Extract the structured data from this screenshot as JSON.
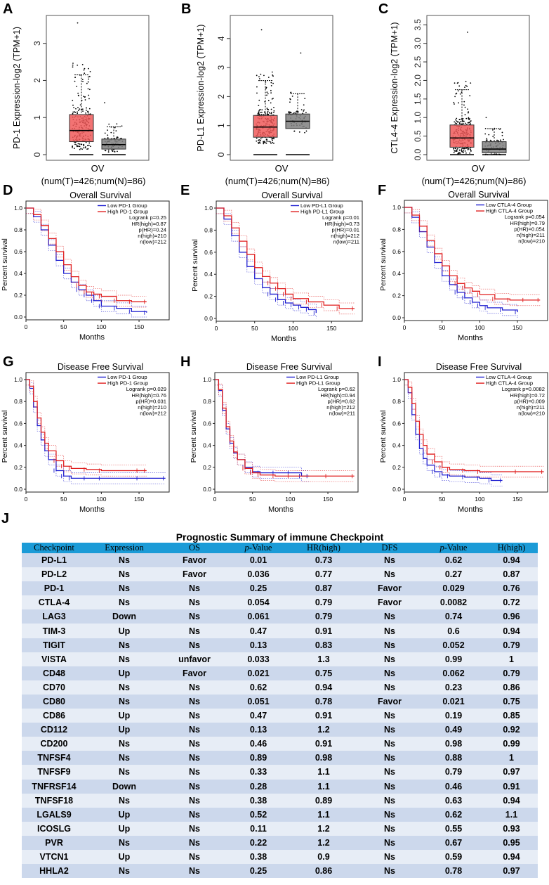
{
  "colors": {
    "tumor_box": "#f05a5a",
    "normal_box": "#7f7f7f",
    "low": "#1f1fd0",
    "high": "#e01e1e",
    "header": "#1b9bd7",
    "row_odd": "#ccd8ec",
    "row_even": "#e7edf6"
  },
  "panel_letters": [
    "A",
    "B",
    "C",
    "D",
    "E",
    "F",
    "G",
    "H",
    "I",
    "J"
  ],
  "chart_data": [
    {
      "panel": "A",
      "type": "box",
      "ylabel": "PD-1 Expression-log2 (TPM+1)",
      "xlabel": "OV",
      "xsub": "(num(T)=426;num(N)=86)",
      "ticks": [
        "0",
        "1",
        "2",
        "3"
      ],
      "ylim": [
        0,
        3.6
      ],
      "tumor": {
        "q1": 0.35,
        "median": 0.65,
        "q3": 1.08,
        "whisker_low": 0.0,
        "whisker_high": 2.15,
        "max": 3.55
      },
      "normal": {
        "q1": 0.15,
        "median": 0.27,
        "q3": 0.42,
        "whisker_low": 0.0,
        "whisker_high": 0.75,
        "max": 1.4
      }
    },
    {
      "panel": "B",
      "type": "box",
      "ylabel": "PD-L1 Expression-log2 (TPM+1)",
      "xlabel": "OV",
      "xsub": "(num(T)=426;num(N)=86)",
      "ticks": [
        "0",
        "1",
        "2",
        "3",
        "4"
      ],
      "ylim": [
        0,
        4.6
      ],
      "tumor": {
        "q1": 0.6,
        "median": 0.95,
        "q3": 1.35,
        "whisker_low": 0.0,
        "whisker_high": 2.55,
        "max": 4.3
      },
      "normal": {
        "q1": 0.9,
        "median": 1.15,
        "q3": 1.4,
        "whisker_low": 0.0,
        "whisker_high": 2.1,
        "max": 3.5
      }
    },
    {
      "panel": "C",
      "type": "box",
      "ylabel": "CTL4-4 Expression-log2 (TPM+1)",
      "xlabel": "OV",
      "xsub": "(num(T)=426;num(N)=86)",
      "ticks": [
        "0.0",
        "0.5",
        "1.0",
        "1.5",
        "2.0",
        "2.5",
        "3.0",
        "3.5"
      ],
      "ylim": [
        0,
        3.6
      ],
      "tumor": {
        "q1": 0.2,
        "median": 0.45,
        "q3": 0.8,
        "whisker_low": 0.0,
        "whisker_high": 1.75,
        "max": 3.3
      },
      "normal": {
        "q1": 0.05,
        "median": 0.15,
        "q3": 0.35,
        "whisker_low": 0.0,
        "whisker_high": 0.7,
        "max": 1.0
      }
    },
    {
      "panel": "D",
      "type": "line",
      "title": "Overall Survival",
      "xlabel": "Months",
      "ylabel": "Percent survival",
      "xticks": [
        "0",
        "50",
        "100",
        "150"
      ],
      "yticks": [
        "0.0",
        "0.2",
        "0.4",
        "0.6",
        "0.8",
        "1.0"
      ],
      "xlim": [
        0,
        190
      ],
      "ylim": [
        0,
        1
      ],
      "legend": [
        "Low   PD-1   Group",
        "High   PD-1   Group",
        "Logrank p=0.25",
        "HR(high)=0.87",
        "p(HR)=0.24",
        "n(high)=210",
        "n(low)=212"
      ],
      "series": [
        {
          "name": "Low",
          "x": [
            0,
            10,
            20,
            30,
            40,
            50,
            60,
            70,
            80,
            90,
            100,
            120,
            140,
            160
          ],
          "y": [
            1.0,
            0.92,
            0.8,
            0.66,
            0.52,
            0.4,
            0.32,
            0.25,
            0.2,
            0.15,
            0.1,
            0.08,
            0.05,
            0.04
          ]
        },
        {
          "name": "High",
          "x": [
            0,
            10,
            20,
            30,
            40,
            50,
            60,
            70,
            80,
            90,
            100,
            120,
            140,
            160
          ],
          "y": [
            1.0,
            0.94,
            0.84,
            0.72,
            0.6,
            0.48,
            0.37,
            0.29,
            0.23,
            0.21,
            0.19,
            0.15,
            0.14,
            0.14
          ]
        }
      ]
    },
    {
      "panel": "E",
      "type": "line",
      "title": "Overall Survival",
      "xlabel": "Months",
      "ylabel": "Percent survival",
      "xticks": [
        "0",
        "50",
        "100",
        "150"
      ],
      "yticks": [
        "0.0",
        "0.2",
        "0.4",
        "0.6",
        "0.8",
        "1.0"
      ],
      "xlim": [
        0,
        190
      ],
      "ylim": [
        0,
        1
      ],
      "legend": [
        "Low  PD-L1 Group",
        "High PD-L1 Group",
        "Logrank p=0.01",
        "HR(high)=0.73",
        "p(HR)=0.01",
        "n(high)=212",
        "n(low)=211"
      ],
      "series": [
        {
          "name": "Low",
          "x": [
            0,
            10,
            20,
            30,
            40,
            50,
            60,
            70,
            80,
            90,
            100,
            110,
            120,
            130
          ],
          "y": [
            1.0,
            0.9,
            0.75,
            0.6,
            0.47,
            0.36,
            0.28,
            0.22,
            0.17,
            0.14,
            0.12,
            0.1,
            0.08,
            0.05
          ]
        },
        {
          "name": "High",
          "x": [
            0,
            10,
            20,
            30,
            40,
            50,
            60,
            70,
            80,
            90,
            100,
            120,
            140,
            160,
            180
          ],
          "y": [
            1.0,
            0.93,
            0.82,
            0.7,
            0.58,
            0.46,
            0.38,
            0.32,
            0.27,
            0.22,
            0.18,
            0.15,
            0.12,
            0.09,
            0.09
          ]
        }
      ]
    },
    {
      "panel": "F",
      "type": "line",
      "title": "Overall Survival",
      "xlabel": "Months",
      "ylabel": "Percent survival",
      "xticks": [
        "0",
        "50",
        "100",
        "150"
      ],
      "yticks": [
        "0.0",
        "0.2",
        "0.4",
        "0.6",
        "0.8",
        "1.0"
      ],
      "xlim": [
        0,
        190
      ],
      "ylim": [
        0,
        1
      ],
      "legend": [
        "Low CTLA-4 Group",
        "High CTLA-4 Group",
        "Logrank p=0.054",
        "HR(high)=0.79",
        "p(HR)=0.054",
        "n(high)=211",
        "n(low)=210"
      ],
      "series": [
        {
          "name": "Low",
          "x": [
            0,
            10,
            20,
            30,
            40,
            50,
            60,
            70,
            80,
            90,
            100,
            110,
            130,
            150
          ],
          "y": [
            1.0,
            0.91,
            0.78,
            0.64,
            0.5,
            0.38,
            0.3,
            0.23,
            0.18,
            0.14,
            0.11,
            0.09,
            0.07,
            0.05
          ]
        },
        {
          "name": "High",
          "x": [
            0,
            10,
            20,
            30,
            40,
            50,
            60,
            70,
            80,
            90,
            100,
            120,
            140,
            160,
            180
          ],
          "y": [
            1.0,
            0.93,
            0.83,
            0.7,
            0.58,
            0.47,
            0.38,
            0.31,
            0.27,
            0.24,
            0.21,
            0.17,
            0.16,
            0.16,
            0.16
          ]
        }
      ]
    },
    {
      "panel": "G",
      "type": "line",
      "title": "Disease Free Survival",
      "xlabel": "Months",
      "ylabel": "Percent survival",
      "xticks": [
        "0",
        "50",
        "100",
        "150"
      ],
      "yticks": [
        "0.0",
        "0.2",
        "0.4",
        "0.6",
        "0.8",
        "1.0"
      ],
      "xlim": [
        0,
        190
      ],
      "ylim": [
        0,
        1
      ],
      "legend": [
        "Low   PD-1   Group",
        "High   PD-1   Group",
        "Logrank p=0.029",
        "HR(high)=0.76",
        "p(HR)=0.031",
        "n(high)=210",
        "n(low)=212"
      ],
      "series": [
        {
          "name": "Low",
          "x": [
            0,
            5,
            10,
            15,
            20,
            25,
            30,
            40,
            50,
            60,
            80,
            100,
            150,
            185
          ],
          "y": [
            1.0,
            0.92,
            0.75,
            0.58,
            0.45,
            0.35,
            0.27,
            0.17,
            0.12,
            0.1,
            0.1,
            0.1,
            0.1,
            0.1
          ]
        },
        {
          "name": "High",
          "x": [
            0,
            5,
            10,
            15,
            20,
            25,
            30,
            40,
            50,
            60,
            80,
            100,
            150,
            160
          ],
          "y": [
            1.0,
            0.94,
            0.8,
            0.65,
            0.52,
            0.42,
            0.35,
            0.26,
            0.21,
            0.19,
            0.18,
            0.17,
            0.17,
            0.17
          ]
        }
      ]
    },
    {
      "panel": "H",
      "type": "line",
      "title": "Disease Free Survival",
      "xlabel": "Months",
      "ylabel": "Percent survival",
      "xticks": [
        "0",
        "50",
        "100",
        "150"
      ],
      "yticks": [
        "0.0",
        "0.2",
        "0.4",
        "0.6",
        "0.8",
        "1.0"
      ],
      "xlim": [
        0,
        190
      ],
      "ylim": [
        0,
        1
      ],
      "legend": [
        "Low  PD-L1 Group",
        "High PD-L1 Group",
        "Logrank p=0.62",
        "HR(high)=0.94",
        "p(HR)=0.62",
        "n(high)=212",
        "n(low)=211"
      ],
      "series": [
        {
          "name": "Low",
          "x": [
            0,
            5,
            10,
            15,
            20,
            25,
            30,
            40,
            50,
            60,
            80,
            100,
            115,
            125
          ],
          "y": [
            1.0,
            0.9,
            0.72,
            0.55,
            0.42,
            0.33,
            0.27,
            0.2,
            0.16,
            0.15,
            0.15,
            0.15,
            0.12,
            0.12
          ]
        },
        {
          "name": "High",
          "x": [
            0,
            5,
            10,
            15,
            20,
            25,
            30,
            40,
            50,
            60,
            80,
            100,
            150,
            185
          ],
          "y": [
            1.0,
            0.91,
            0.74,
            0.57,
            0.44,
            0.34,
            0.27,
            0.19,
            0.15,
            0.13,
            0.12,
            0.12,
            0.12,
            0.12
          ]
        }
      ]
    },
    {
      "panel": "I",
      "type": "line",
      "title": "Disease Free Survival",
      "xlabel": "Months",
      "ylabel": "Percent survival",
      "xticks": [
        "0",
        "50",
        "100",
        "150"
      ],
      "yticks": [
        "0.0",
        "0.2",
        "0.4",
        "0.6",
        "0.8",
        "1.0"
      ],
      "xlim": [
        0,
        190
      ],
      "ylim": [
        0,
        1
      ],
      "legend": [
        "Low CTLA-4 Group",
        "High CTLA-4 Group",
        "Logrank p=0.0082",
        "HR(high)=0.72",
        "p(HR)=0.009",
        "n(high)=211",
        "n(low)=210"
      ],
      "series": [
        {
          "name": "Low",
          "x": [
            0,
            5,
            10,
            15,
            20,
            25,
            30,
            40,
            50,
            60,
            80,
            100,
            115,
            130
          ],
          "y": [
            1.0,
            0.88,
            0.68,
            0.5,
            0.37,
            0.28,
            0.22,
            0.16,
            0.13,
            0.12,
            0.11,
            0.1,
            0.08,
            0.08
          ]
        },
        {
          "name": "High",
          "x": [
            0,
            5,
            10,
            15,
            20,
            25,
            30,
            40,
            50,
            60,
            80,
            100,
            150,
            185
          ],
          "y": [
            1.0,
            0.93,
            0.78,
            0.62,
            0.5,
            0.4,
            0.32,
            0.25,
            0.2,
            0.18,
            0.17,
            0.16,
            0.16,
            0.16
          ]
        }
      ]
    }
  ],
  "table": {
    "title": "Prognostic Summary of immune Checkpoint",
    "headers": [
      "Checkpoint",
      "Expression",
      "OS",
      "p-Value",
      "HR(high)",
      "DFS",
      "p-Value",
      "H(high)"
    ],
    "rows": [
      [
        "PD-L1",
        "Ns",
        "Favor",
        "0.01",
        "0.73",
        "Ns",
        "0.62",
        "0.94"
      ],
      [
        "PD-L2",
        "Ns",
        "Favor",
        "0.036",
        "0.77",
        "Ns",
        "0.27",
        "0.87"
      ],
      [
        "PD-1",
        "Ns",
        "Ns",
        "0.25",
        "0.87",
        "Favor",
        "0.029",
        "0.76"
      ],
      [
        "CTLA-4",
        "Ns",
        "Ns",
        "0.054",
        "0.79",
        "Favor",
        "0.0082",
        "0.72"
      ],
      [
        "LAG3",
        "Down",
        "Ns",
        "0.061",
        "0.79",
        "Ns",
        "0.74",
        "0.96"
      ],
      [
        "TIM-3",
        "Up",
        "Ns",
        "0.47",
        "0.91",
        "Ns",
        "0.6",
        "0.94"
      ],
      [
        "TIGIT",
        "Ns",
        "Ns",
        "0.13",
        "0.83",
        "Ns",
        "0.052",
        "0.79"
      ],
      [
        "VISTA",
        "Ns",
        "unfavor",
        "0.033",
        "1.3",
        "Ns",
        "0.99",
        "1"
      ],
      [
        "CD48",
        "Up",
        "Favor",
        "0.021",
        "0.75",
        "Ns",
        "0.062",
        "0.79"
      ],
      [
        "CD70",
        "Ns",
        "Ns",
        "0.62",
        "0.94",
        "Ns",
        "0.23",
        "0.86"
      ],
      [
        "CD80",
        "Ns",
        "Ns",
        "0.051",
        "0.78",
        "Favor",
        "0.021",
        "0.75"
      ],
      [
        "CD86",
        "Up",
        "Ns",
        "0.47",
        "0.91",
        "Ns",
        "0.19",
        "0.85"
      ],
      [
        "CD112",
        "Up",
        "Ns",
        "0.13",
        "1.2",
        "Ns",
        "0.49",
        "0.92"
      ],
      [
        "CD200",
        "Ns",
        "Ns",
        "0.46",
        "0.91",
        "Ns",
        "0.98",
        "0.99"
      ],
      [
        "TNFSF4",
        "Ns",
        "Ns",
        "0.89",
        "0.98",
        "Ns",
        "0.88",
        "1"
      ],
      [
        "TNFSF9",
        "Ns",
        "Ns",
        "0.33",
        "1.1",
        "Ns",
        "0.79",
        "0.97"
      ],
      [
        "TNFRSF14",
        "Down",
        "Ns",
        "0.28",
        "1.1",
        "Ns",
        "0.46",
        "0.91"
      ],
      [
        "TNFSF18",
        "Ns",
        "Ns",
        "0.38",
        "0.89",
        "Ns",
        "0.63",
        "0.94"
      ],
      [
        "LGALS9",
        "Up",
        "Ns",
        "0.52",
        "1.1",
        "Ns",
        "0.62",
        "1.1"
      ],
      [
        "ICOSLG",
        "Up",
        "Ns",
        "0.11",
        "1.2",
        "Ns",
        "0.55",
        "0.93"
      ],
      [
        "PVR",
        "Ns",
        "Ns",
        "0.22",
        "1.2",
        "Ns",
        "0.67",
        "0.95"
      ],
      [
        "VTCN1",
        "Up",
        "Ns",
        "0.38",
        "0.9",
        "Ns",
        "0.59",
        "0.94"
      ],
      [
        "HHLA2",
        "Ns",
        "Ns",
        "0.25",
        "0.86",
        "Ns",
        "0.78",
        "0.97"
      ]
    ]
  }
}
